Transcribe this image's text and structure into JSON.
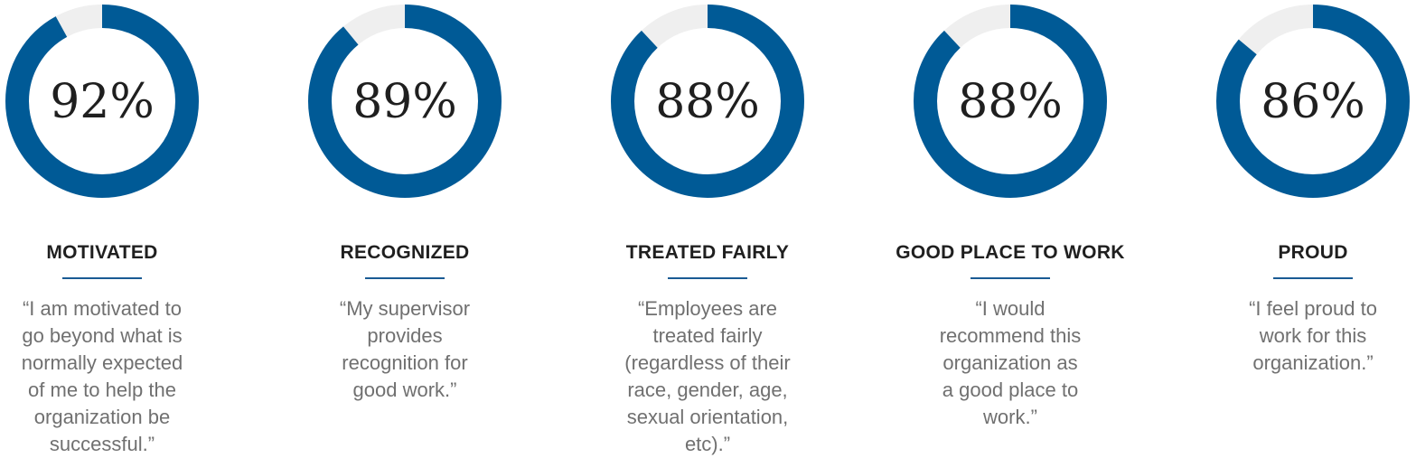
{
  "colors": {
    "filled": "#005a96",
    "remainder": "#efefef"
  },
  "chart_data": {
    "type": "pie",
    "variant": "donut",
    "series": [
      {
        "category": "MOTIVATED",
        "value": 92,
        "label": "92%"
      },
      {
        "category": "RECOGNIZED",
        "value": 89,
        "label": "89%"
      },
      {
        "category": "TREATED FAIRLY",
        "value": 88,
        "label": "88%"
      },
      {
        "category": "GOOD PLACE TO WORK",
        "value": 88,
        "label": "88%"
      },
      {
        "category": "PROUD",
        "value": 86,
        "label": "86%"
      }
    ]
  },
  "items": [
    {
      "heading": "MOTIVATED",
      "quote_lines": [
        "“I am motivated to",
        "go beyond what is",
        "normally expected",
        "of me to help the",
        "organization be",
        "successful.”"
      ]
    },
    {
      "heading": "RECOGNIZED",
      "quote_lines": [
        "“My supervisor",
        "provides",
        "recognition for",
        "good work.”"
      ]
    },
    {
      "heading": "TREATED FAIRLY",
      "quote_lines": [
        "“Employees are",
        "treated fairly",
        "(regardless of their",
        "race, gender, age,",
        "sexual orientation,",
        "etc).”"
      ]
    },
    {
      "heading": "GOOD PLACE TO WORK",
      "quote_lines": [
        "“I would",
        "recommend this",
        "organization as",
        "a good place to",
        "work.”"
      ]
    },
    {
      "heading": "PROUD",
      "quote_lines": [
        "“I feel proud to",
        "work for this",
        "organization.”"
      ]
    }
  ]
}
